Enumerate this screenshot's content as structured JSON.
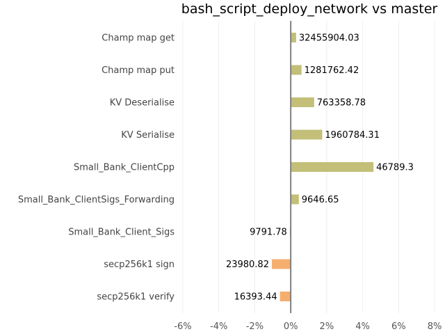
{
  "chart_data": {
    "type": "bar",
    "orientation": "horizontal",
    "title": "bash_script_deploy_network vs master",
    "xlabel": "",
    "ylabel": "",
    "categories": [
      "Champ map get",
      "Champ map put",
      "KV Deserialise",
      "KV Serialise",
      "Small_Bank_ClientCpp",
      "Small_Bank_ClientSigs_Forwarding",
      "Small_Bank_Client_Sigs",
      "secp256k1 sign",
      "secp256k1 verify"
    ],
    "values": [
      0.3,
      0.6,
      1.3,
      1.75,
      4.6,
      0.45,
      -0.05,
      -1.05,
      -0.6
    ],
    "data_labels": [
      "32455904.03",
      "1281762.42",
      "763358.78",
      "1960784.31",
      "46789.3",
      "9646.65",
      "9791.78",
      "23980.82",
      "16393.44"
    ],
    "xlim": [
      -6.5,
      8.5
    ],
    "xticks": [
      -6,
      -4,
      -2,
      0,
      2,
      4,
      6,
      8
    ],
    "xtick_labels": [
      "-6%",
      "-4%",
      "-2%",
      "0%",
      "2%",
      "4%",
      "6%",
      "8%"
    ],
    "grid": true,
    "colors": {
      "positive": "#c3bf79",
      "negative": "#f6ae6e",
      "zero_line": "#808080",
      "grid": "#eeeeee"
    }
  }
}
